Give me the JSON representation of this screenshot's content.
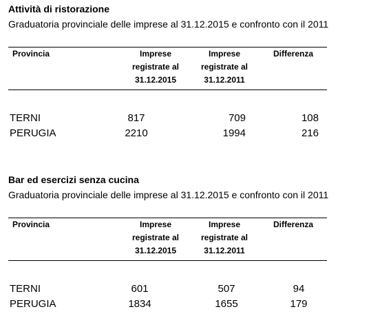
{
  "sections": [
    {
      "title": "Attività di ristorazione",
      "subtitle": "Graduatoria provinciale delle imprese al 31.12.2015 e confronto con il 2011",
      "header": [
        [
          "Provincia"
        ],
        [
          "Imprese",
          "registrate al",
          "31.12.2015"
        ],
        [
          "Imprese",
          "registrate al",
          "31.12.2011"
        ],
        [
          "Differenza"
        ]
      ],
      "rows": [
        [
          "TERNI",
          817,
          709,
          108
        ],
        [
          "PERUGIA",
          2210,
          1994,
          216
        ]
      ]
    },
    {
      "title": "Bar ed esercizi senza cucina",
      "subtitle": "Graduatoria provinciale delle imprese al 31.12.2015 e confronto con il 2011",
      "header": [
        [
          "Provincia"
        ],
        [
          "Imprese",
          "registrate al",
          "31.12.2015"
        ],
        [
          "Imprese",
          "registrate al",
          "31.12.2011"
        ],
        [
          "Differenza"
        ]
      ],
      "rows": [
        [
          "TERNI",
          601,
          507,
          94
        ],
        [
          "PERUGIA",
          1834,
          1655,
          179
        ]
      ]
    }
  ]
}
